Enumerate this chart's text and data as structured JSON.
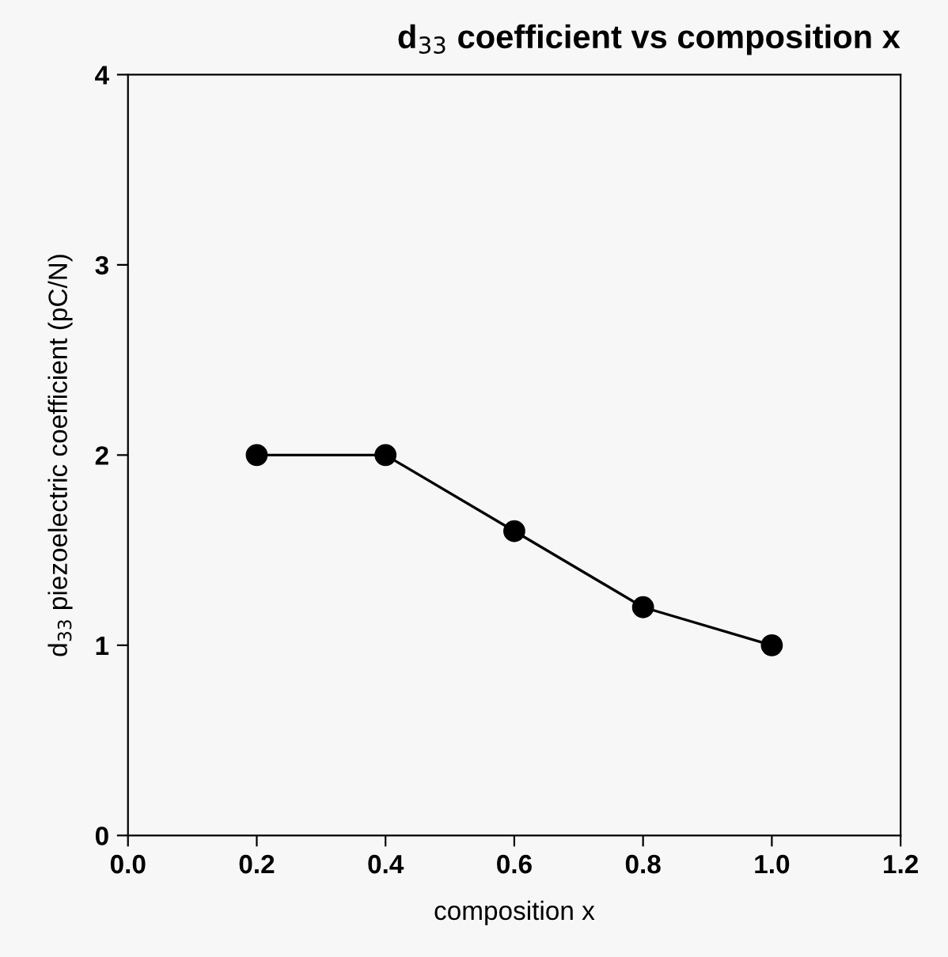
{
  "chart_data": {
    "type": "line",
    "title": "d$_{33}$ coefficient vs composition x",
    "xlabel": "composition x",
    "ylabel": "d$_{33}$ piezoelectric coefficient (pC/N)",
    "x": [
      0.2,
      0.4,
      0.6,
      0.8,
      1.0
    ],
    "series": [
      {
        "color": "#000000",
        "values": [
          2.0,
          2.0,
          1.6,
          1.2,
          1.0
        ]
      }
    ],
    "xlim": [
      0.0,
      1.2
    ],
    "xticks": [
      {
        "value": 0.0,
        "label": "0.0"
      },
      0.2,
      0.4,
      0.6,
      0.8,
      {
        "value": 1.0,
        "label": "1.0"
      },
      1.2
    ],
    "ylim": [
      0,
      4
    ],
    "yticks": [
      0,
      1,
      2,
      3,
      4
    ],
    "marker": "circle",
    "line_style": "solid",
    "grid": false,
    "legend": false
  }
}
